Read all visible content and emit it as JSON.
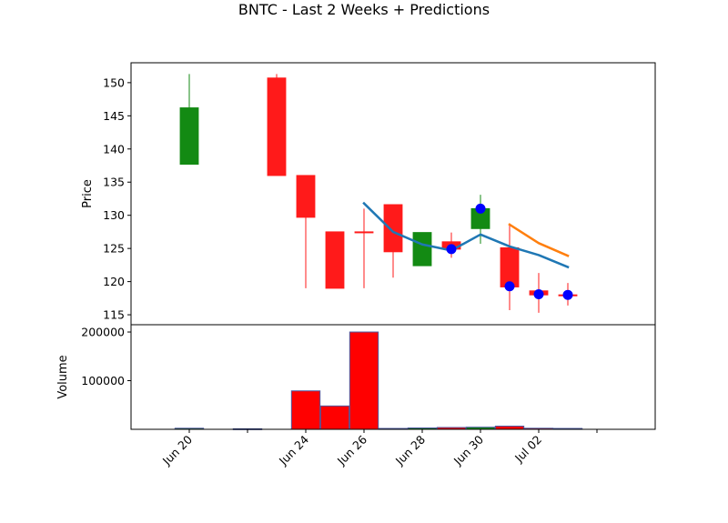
{
  "chart_data": {
    "type": "candlestick",
    "title": "BNTC - Last 2 Weeks + Predictions",
    "price_panel": {
      "ylabel": "Price",
      "ylim": [
        113.5,
        153
      ],
      "yticks": [
        115,
        120,
        125,
        130,
        135,
        140,
        145,
        150
      ],
      "candles": [
        {
          "date": "2025-06-20",
          "open": 137.7,
          "high": 151.3,
          "low": 137.7,
          "close": 146.2,
          "direction": "up"
        },
        {
          "date": "2025-06-23",
          "open": 150.7,
          "high": 151.3,
          "low": 136.0,
          "close": 136.0,
          "direction": "down"
        },
        {
          "date": "2025-06-24",
          "open": 136.0,
          "high": 136.0,
          "low": 119.0,
          "close": 129.7,
          "direction": "down"
        },
        {
          "date": "2025-06-25",
          "open": 127.5,
          "high": 127.5,
          "low": 119.0,
          "close": 119.0,
          "direction": "down"
        },
        {
          "date": "2025-06-26",
          "open": 127.5,
          "high": 131.0,
          "low": 119.0,
          "close": 127.5,
          "direction": "down"
        },
        {
          "date": "2025-06-27",
          "open": 131.6,
          "high": 131.6,
          "low": 120.6,
          "close": 124.5,
          "direction": "down"
        },
        {
          "date": "2025-06-28",
          "open": 122.4,
          "high": 127.4,
          "low": 122.4,
          "close": 127.4,
          "direction": "up"
        },
        {
          "date": "2025-06-29",
          "open": 126.0,
          "high": 127.4,
          "low": 123.6,
          "close": 124.9,
          "direction": "down"
        },
        {
          "date": "2025-06-30",
          "open": 128.0,
          "high": 133.1,
          "low": 125.7,
          "close": 131.0,
          "direction": "up"
        },
        {
          "date": "2025-07-01",
          "open": 125.1,
          "high": 128.8,
          "low": 115.7,
          "close": 119.2,
          "direction": "down"
        },
        {
          "date": "2025-07-02",
          "open": 118.6,
          "high": 121.3,
          "low": 115.3,
          "close": 118.0,
          "direction": "down"
        },
        {
          "date": "2025-07-03",
          "open": 118.0,
          "high": 119.8,
          "low": 116.4,
          "close": 118.0,
          "direction": "down"
        }
      ],
      "markers": [
        {
          "date": "2025-06-29",
          "value": 124.9
        },
        {
          "date": "2025-06-30",
          "value": 131.0
        },
        {
          "date": "2025-07-01",
          "value": 119.3
        },
        {
          "date": "2025-07-02",
          "value": 118.1
        },
        {
          "date": "2025-07-03",
          "value": 118.0
        }
      ],
      "lines": [
        {
          "color": "#1f77b4",
          "points": [
            {
              "date": "2025-06-26",
              "value": 131.8
            },
            {
              "date": "2025-06-27",
              "value": 127.5
            },
            {
              "date": "2025-06-28",
              "value": 125.6
            },
            {
              "date": "2025-06-29",
              "value": 124.7
            },
            {
              "date": "2025-06-30",
              "value": 127.1
            },
            {
              "date": "2025-07-01",
              "value": 125.3
            },
            {
              "date": "2025-07-02",
              "value": 124.0
            },
            {
              "date": "2025-07-03",
              "value": 122.2
            }
          ]
        },
        {
          "color": "#ff7f0e",
          "points": [
            {
              "date": "2025-07-01",
              "value": 128.6
            },
            {
              "date": "2025-07-02",
              "value": 125.8
            },
            {
              "date": "2025-07-03",
              "value": 123.9
            }
          ]
        }
      ]
    },
    "volume_panel": {
      "ylabel": "Volume",
      "ylim": [
        0,
        215000
      ],
      "yticks": [
        100000,
        200000
      ],
      "bars": [
        {
          "date": "2025-06-20",
          "volume": 2200,
          "direction": "up"
        },
        {
          "date": "2025-06-22",
          "volume": 1200,
          "direction": "down"
        },
        {
          "date": "2025-06-24",
          "volume": 79000,
          "direction": "down"
        },
        {
          "date": "2025-06-25",
          "volume": 48000,
          "direction": "down"
        },
        {
          "date": "2025-06-26",
          "volume": 200000,
          "direction": "down"
        },
        {
          "date": "2025-06-27",
          "volume": 1800,
          "direction": "down"
        },
        {
          "date": "2025-06-28",
          "volume": 2800,
          "direction": "up"
        },
        {
          "date": "2025-06-29",
          "volume": 3800,
          "direction": "down"
        },
        {
          "date": "2025-06-30",
          "volume": 4400,
          "direction": "up"
        },
        {
          "date": "2025-07-01",
          "volume": 6500,
          "direction": "down"
        },
        {
          "date": "2025-07-02",
          "volume": 2200,
          "direction": "down"
        },
        {
          "date": "2025-07-03",
          "volume": 1800,
          "direction": "down"
        }
      ]
    },
    "xaxis": {
      "range": [
        "2025-06-18",
        "2025-07-06"
      ],
      "ticks": [
        {
          "date": "2025-06-20",
          "label": "Jun 20"
        },
        {
          "date": "2025-06-22",
          "label": ""
        },
        {
          "date": "2025-06-24",
          "label": "Jun 24"
        },
        {
          "date": "2025-06-26",
          "label": "Jun 26"
        },
        {
          "date": "2025-06-28",
          "label": "Jun 28"
        },
        {
          "date": "2025-06-30",
          "label": "Jun 30"
        },
        {
          "date": "2025-07-02",
          "label": "Jul 02"
        },
        {
          "date": "2025-07-04",
          "label": ""
        }
      ]
    },
    "colors": {
      "up": "#138a13",
      "down": "#ff1a1a",
      "marker": "#0000ff",
      "volume_up": "#138a13",
      "volume_down": "#ff0000"
    },
    "grid": false
  }
}
